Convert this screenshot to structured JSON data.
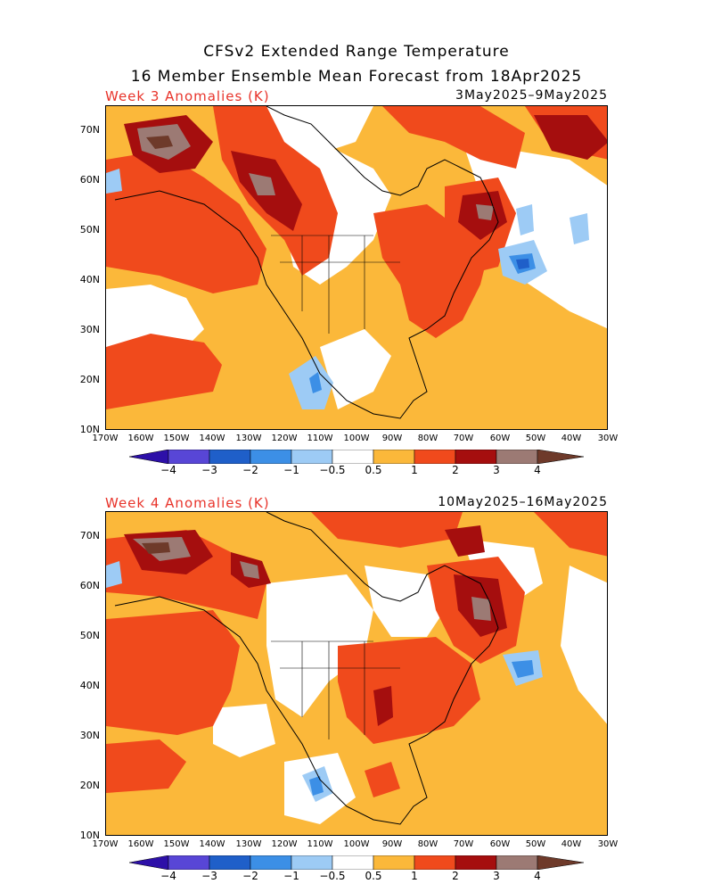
{
  "title_line1": "CFSv2 Extended Range Temperature",
  "title_line2": "16 Member Ensemble Mean Forecast from 18Apr2025",
  "panels": [
    {
      "label": "Week 3 Anomalies (K)",
      "dates": "3May2025–9May2025"
    },
    {
      "label": "Week 4 Anomalies (K)",
      "dates": "10May2025–16May2025"
    }
  ],
  "lat_labels": [
    "70N",
    "60N",
    "50N",
    "40N",
    "30N",
    "20N",
    "10N"
  ],
  "lon_labels": [
    "170W",
    "160W",
    "150W",
    "140W",
    "130W",
    "120W",
    "110W",
    "100W",
    "90W",
    "80W",
    "70W",
    "60W",
    "50W",
    "40W",
    "30W"
  ],
  "colorbar": {
    "labels": [
      "−4",
      "−3",
      "−2",
      "−1",
      "−0.5",
      "0.5",
      "1",
      "2",
      "3",
      "4"
    ],
    "colors": [
      "#2d10a8",
      "#5846d6",
      "#1f5fc9",
      "#3c8fe6",
      "#9dcbf5",
      "#ffffff",
      "#fbb83a",
      "#f04a1c",
      "#a50e0e",
      "#9c7a74",
      "#6e3a2a"
    ]
  },
  "legend_colors": {
    "light_orange": "#fbb83a",
    "red_orange": "#f04a1c",
    "dark_red": "#a50e0e",
    "brown": "#9c7a74",
    "dark_brown": "#6e3a2a",
    "light_blue": "#9dcbf5",
    "mid_blue": "#3c8fe6",
    "blue": "#1f5fc9"
  }
}
